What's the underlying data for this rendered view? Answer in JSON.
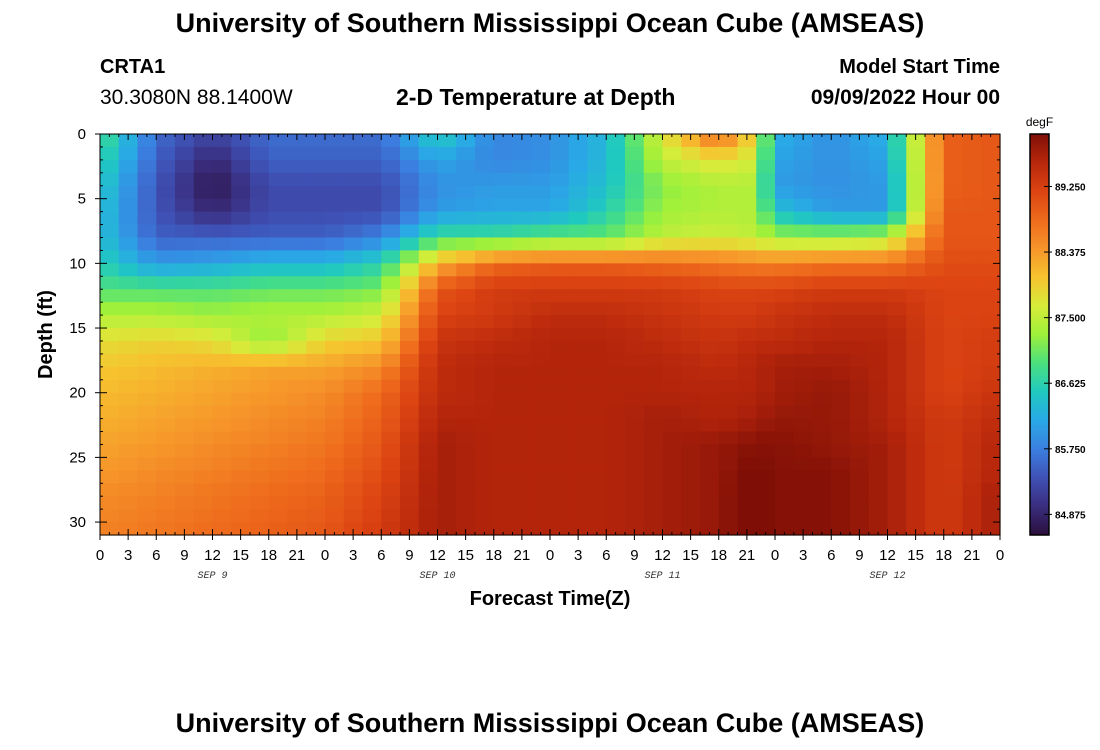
{
  "header": {
    "title": "University of Southern Mississippi Ocean Cube (AMSEAS)",
    "station_name": "CRTA1",
    "station_coords": "30.3080N  88.1400W",
    "plot_title": "2-D Temperature at Depth",
    "model_start_label": "Model Start Time",
    "model_start_value": "09/09/2022 Hour 00"
  },
  "footer": {
    "title": "University of Southern Mississippi Ocean Cube (AMSEAS)"
  },
  "chart_data": {
    "type": "heatmap",
    "title": "2-D Temperature at Depth",
    "xlabel": "Forecast Time(Z)",
    "ylabel": "Depth (ft)",
    "x_range_hours": [
      0,
      96
    ],
    "x_ticks": [
      "0",
      "3",
      "6",
      "9",
      "12",
      "15",
      "18",
      "21",
      "0",
      "3",
      "6",
      "9",
      "12",
      "15",
      "18",
      "21",
      "0",
      "3",
      "6",
      "9",
      "12",
      "15",
      "18",
      "21",
      "0",
      "3",
      "6",
      "9",
      "12",
      "15",
      "18",
      "21",
      "0"
    ],
    "day_labels": [
      "SEP 9",
      "SEP 10",
      "SEP 11",
      "SEP 12"
    ],
    "y_range_ft": [
      0,
      31
    ],
    "y_ticks": [
      0,
      5,
      10,
      15,
      20,
      25,
      30
    ],
    "colorbar": {
      "unit": "degF",
      "ticks": [
        89.25,
        88.375,
        87.5,
        86.625,
        85.75,
        84.875
      ],
      "tick_labels": [
        "89.250",
        "88.375",
        "87.500",
        "86.625",
        "85.750",
        "84.875"
      ],
      "range": [
        84.6,
        89.95
      ],
      "colors": [
        "#2a0f3c",
        "#3a2d7e",
        "#3f51b5",
        "#3b7fe0",
        "#29a9e6",
        "#20c9c0",
        "#4be07e",
        "#9ef03a",
        "#d7ec3a",
        "#f6c32f",
        "#f6952a",
        "#ee6a1c",
        "#dc4412",
        "#b8270c",
        "#7f0f06"
      ]
    },
    "hours": [
      0,
      6,
      12,
      18,
      24,
      30,
      36,
      42,
      48,
      54,
      60,
      66,
      70,
      72,
      78,
      84,
      90,
      96
    ],
    "depths_ft": [
      0,
      2,
      4,
      6,
      8,
      10,
      12,
      14,
      16,
      18,
      20,
      22,
      24,
      26,
      28,
      31
    ],
    "values_degF": [
      [
        86.9,
        85.6,
        85.2,
        85.6,
        85.6,
        85.6,
        86.6,
        85.8,
        85.9,
        86.3,
        87.7,
        88.9,
        87.8,
        86.2,
        85.9,
        86.2,
        88.9,
        89.0
      ],
      [
        86.7,
        85.5,
        84.9,
        85.5,
        85.5,
        85.5,
        86.1,
        85.8,
        85.9,
        86.3,
        87.5,
        87.8,
        87.6,
        86.1,
        85.9,
        86.1,
        88.9,
        89.0
      ],
      [
        86.5,
        85.4,
        84.7,
        85.3,
        85.3,
        85.3,
        85.9,
        86.0,
        86.0,
        86.4,
        87.2,
        87.4,
        87.4,
        86.0,
        85.9,
        86.0,
        88.9,
        89.0
      ],
      [
        86.4,
        85.4,
        84.9,
        85.3,
        85.3,
        85.3,
        86.0,
        86.1,
        86.1,
        86.6,
        87.3,
        87.4,
        87.4,
        86.4,
        86.0,
        86.0,
        89.0,
        89.0
      ],
      [
        86.4,
        85.5,
        85.5,
        85.5,
        85.5,
        85.8,
        86.8,
        86.8,
        87.0,
        87.0,
        87.5,
        87.6,
        87.5,
        87.3,
        87.3,
        87.4,
        89.0,
        89.0
      ],
      [
        86.6,
        86.0,
        86.1,
        86.3,
        86.3,
        86.6,
        88.2,
        88.8,
        88.9,
        88.9,
        88.8,
        88.7,
        88.6,
        88.6,
        88.7,
        88.7,
        89.1,
        89.1
      ],
      [
        86.9,
        86.9,
        86.9,
        87.0,
        87.0,
        87.1,
        89.0,
        89.3,
        89.3,
        89.3,
        89.3,
        89.2,
        89.2,
        89.2,
        89.3,
        89.3,
        89.2,
        89.2
      ],
      [
        87.4,
        87.4,
        87.3,
        87.4,
        87.4,
        87.6,
        89.2,
        89.3,
        89.5,
        89.5,
        89.4,
        89.3,
        89.3,
        89.4,
        89.5,
        89.5,
        89.2,
        89.2
      ],
      [
        87.8,
        87.9,
        87.8,
        87.2,
        87.9,
        88.0,
        89.4,
        89.5,
        89.6,
        89.6,
        89.5,
        89.4,
        89.5,
        89.5,
        89.6,
        89.6,
        89.2,
        89.3
      ],
      [
        88.0,
        88.1,
        88.2,
        88.3,
        88.3,
        88.5,
        89.5,
        89.6,
        89.6,
        89.6,
        89.6,
        89.5,
        89.6,
        89.7,
        89.7,
        89.6,
        89.2,
        89.3
      ],
      [
        88.1,
        88.2,
        88.3,
        88.4,
        88.5,
        88.8,
        89.5,
        89.6,
        89.6,
        89.6,
        89.6,
        89.6,
        89.6,
        89.7,
        89.8,
        89.6,
        89.2,
        89.4
      ],
      [
        88.2,
        88.3,
        88.4,
        88.5,
        88.6,
        88.9,
        89.6,
        89.6,
        89.6,
        89.6,
        89.7,
        89.6,
        89.7,
        89.8,
        89.8,
        89.6,
        89.3,
        89.5
      ],
      [
        88.3,
        88.4,
        88.5,
        88.6,
        88.7,
        89.0,
        89.7,
        89.6,
        89.6,
        89.6,
        89.7,
        89.8,
        89.9,
        89.9,
        89.8,
        89.7,
        89.3,
        89.6
      ],
      [
        88.4,
        88.5,
        88.6,
        88.7,
        88.8,
        89.1,
        89.7,
        89.6,
        89.6,
        89.6,
        89.7,
        89.8,
        90.0,
        89.9,
        89.9,
        89.7,
        89.3,
        89.6
      ],
      [
        88.5,
        88.6,
        88.7,
        88.8,
        88.9,
        89.2,
        89.7,
        89.6,
        89.6,
        89.6,
        89.7,
        89.8,
        90.1,
        89.9,
        89.9,
        89.7,
        89.3,
        89.7
      ],
      [
        88.6,
        88.7,
        88.8,
        88.9,
        89.0,
        89.3,
        89.7,
        89.6,
        89.6,
        89.6,
        89.7,
        89.8,
        90.1,
        89.9,
        89.9,
        89.7,
        89.3,
        89.7
      ]
    ]
  }
}
